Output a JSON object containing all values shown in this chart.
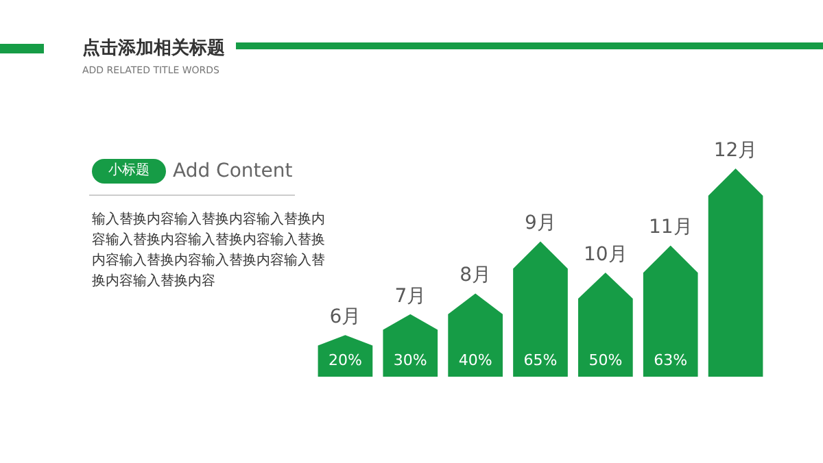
{
  "chart_data": {
    "type": "bar",
    "title": "点击添加相关标题",
    "subtitle": "ADD RELATED TITLE WORDS",
    "annotations": [
      "小标题",
      "Add Content",
      "输入替换内容输入替换内容输入替换内容输入替换内容输入替换内容输入替换内容输入替换内容输入替换内容输入替换内容输入替换内容"
    ],
    "categories": [
      "6月",
      "7月",
      "8月",
      "9月",
      "10月",
      "11月",
      "12月"
    ],
    "values": [
      20,
      30,
      40,
      65,
      50,
      63,
      100
    ],
    "value_labels": [
      "20%",
      "30%",
      "40%",
      "65%",
      "50%",
      "63%",
      null
    ],
    "color": "#169c46"
  }
}
